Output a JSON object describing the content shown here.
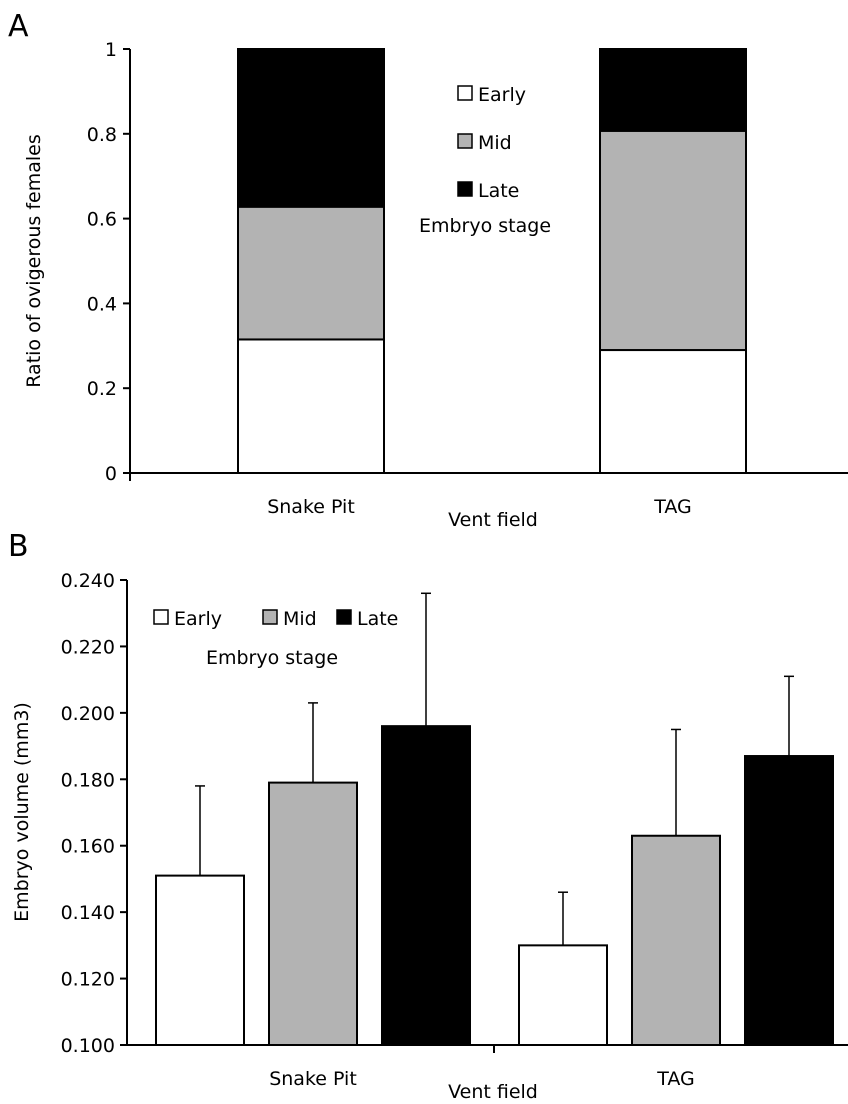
{
  "chart_data": [
    {
      "panel": "A",
      "type": "bar",
      "stacked": true,
      "categories": [
        "Snake Pit",
        "TAG"
      ],
      "series": [
        {
          "name": "Early",
          "values": [
            0.315,
            0.29
          ],
          "color": "#ffffff"
        },
        {
          "name": "Mid",
          "values": [
            0.313,
            0.517
          ],
          "color": "#b3b3b3"
        },
        {
          "name": "Late",
          "values": [
            0.372,
            0.193
          ],
          "color": "#000000"
        }
      ],
      "xlabel": "Vent field",
      "ylabel": "Ratio of ovigerous females",
      "ylim": [
        0,
        1
      ],
      "yticks": [
        "0",
        "0.2",
        "0.4",
        "0.6",
        "0.8",
        "1"
      ],
      "legend_title": "Embryo stage",
      "legend_placement": "top-center",
      "legend_orientation": "vertical",
      "grid": false
    },
    {
      "panel": "B",
      "type": "bar",
      "stacked": false,
      "categories": [
        "Snake Pit",
        "TAG"
      ],
      "series": [
        {
          "name": "Early",
          "values": [
            0.151,
            0.13
          ],
          "errors": [
            0.027,
            0.016
          ],
          "color": "#ffffff"
        },
        {
          "name": "Mid",
          "values": [
            0.179,
            0.163
          ],
          "errors": [
            0.024,
            0.032
          ],
          "color": "#b3b3b3"
        },
        {
          "name": "Late",
          "values": [
            0.196,
            0.187
          ],
          "errors": [
            0.04,
            0.024
          ],
          "color": "#000000"
        }
      ],
      "xlabel": "Vent field",
      "ylabel": "Embryo volume (mm3)",
      "ylim": [
        0.1,
        0.24
      ],
      "yticks": [
        "0.100",
        "0.120",
        "0.140",
        "0.160",
        "0.180",
        "0.200",
        "0.220",
        "0.240"
      ],
      "legend_title": "Embryo stage",
      "legend_placement": "top-left",
      "legend_orientation": "horizontal",
      "grid": false
    }
  ]
}
